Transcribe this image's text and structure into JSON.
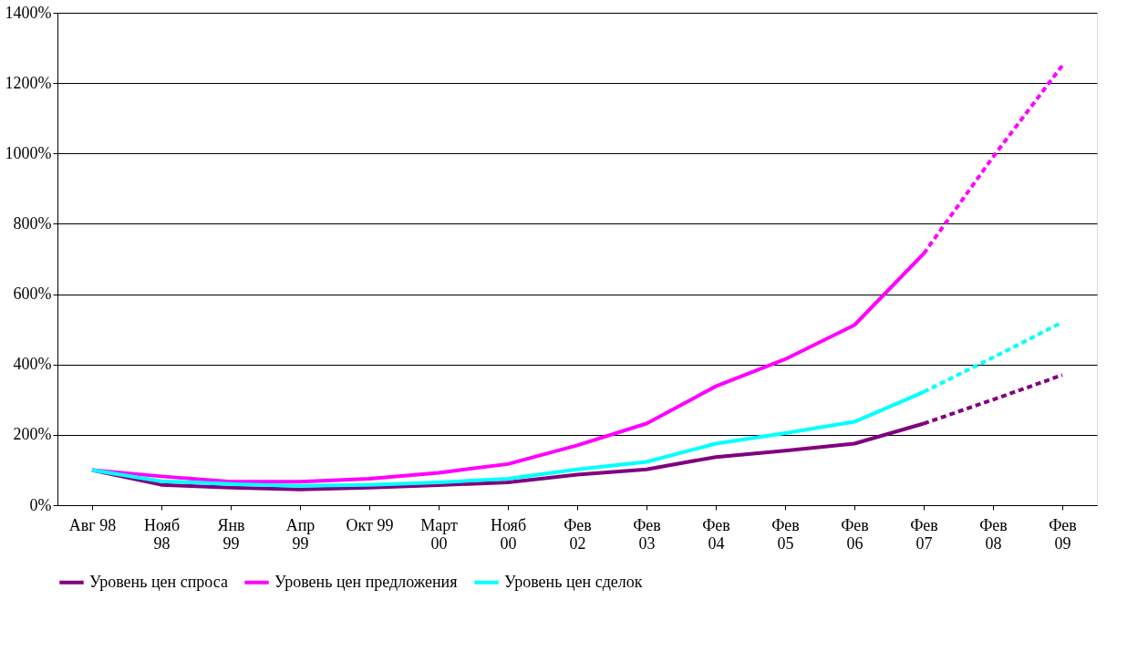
{
  "chart_data": {
    "type": "line",
    "categories": [
      "Авг 98",
      "Нояб\n98",
      "Янв\n99",
      "Апр\n99",
      "Окт 99",
      "Март\n00",
      "Нояб\n00",
      "Фев\n02",
      "Фев\n03",
      "Фев\n04",
      "Фев\n05",
      "Фев\n06",
      "Фев\n07",
      "Фев\n08",
      "Фев\n09"
    ],
    "series": [
      {
        "name": "Уровень цен спроса",
        "color": "#800080",
        "line_style": "solid",
        "values": [
          100,
          58,
          50,
          45,
          50,
          57,
          65,
          87,
          102,
          137,
          155,
          175,
          232,
          null,
          null
        ]
      },
      {
        "name": "Уровень цен предложения",
        "color": "#ff00ff",
        "line_style": "solid",
        "values": [
          100,
          82,
          67,
          67,
          75,
          92,
          117,
          170,
          232,
          338,
          415,
          512,
          715,
          null,
          null
        ]
      },
      {
        "name": "Уровень цен сделок",
        "color": "#00ffff",
        "line_style": "solid",
        "values": [
          100,
          68,
          60,
          55,
          58,
          65,
          75,
          102,
          123,
          175,
          205,
          237,
          322,
          null,
          null
        ]
      },
      {
        "color": "#800080",
        "line_style": "dashed",
        "values": [
          null,
          null,
          null,
          null,
          null,
          null,
          null,
          null,
          null,
          null,
          null,
          null,
          232,
          300,
          370
        ]
      },
      {
        "color": "#ff00ff",
        "line_style": "dashed",
        "values": [
          null,
          null,
          null,
          null,
          null,
          null,
          null,
          null,
          null,
          null,
          null,
          null,
          715,
          990,
          1250
        ]
      },
      {
        "color": "#00ffff",
        "line_style": "dashed",
        "values": [
          null,
          null,
          null,
          null,
          null,
          null,
          null,
          null,
          null,
          null,
          null,
          null,
          322,
          420,
          520
        ]
      }
    ],
    "ylim": [
      0,
      1400
    ],
    "yticks": [
      {
        "value": 0,
        "label": "0%"
      },
      {
        "value": 200,
        "label": "200%"
      },
      {
        "value": 400,
        "label": "400%"
      },
      {
        "value": 600,
        "label": "600%"
      },
      {
        "value": 800,
        "label": "800%"
      },
      {
        "value": 1000,
        "label": "1000%"
      },
      {
        "value": 1200,
        "label": "1200%"
      },
      {
        "value": 1400,
        "label": "1400%"
      }
    ],
    "grid": "y",
    "legend": "bottom",
    "marker": "none"
  }
}
